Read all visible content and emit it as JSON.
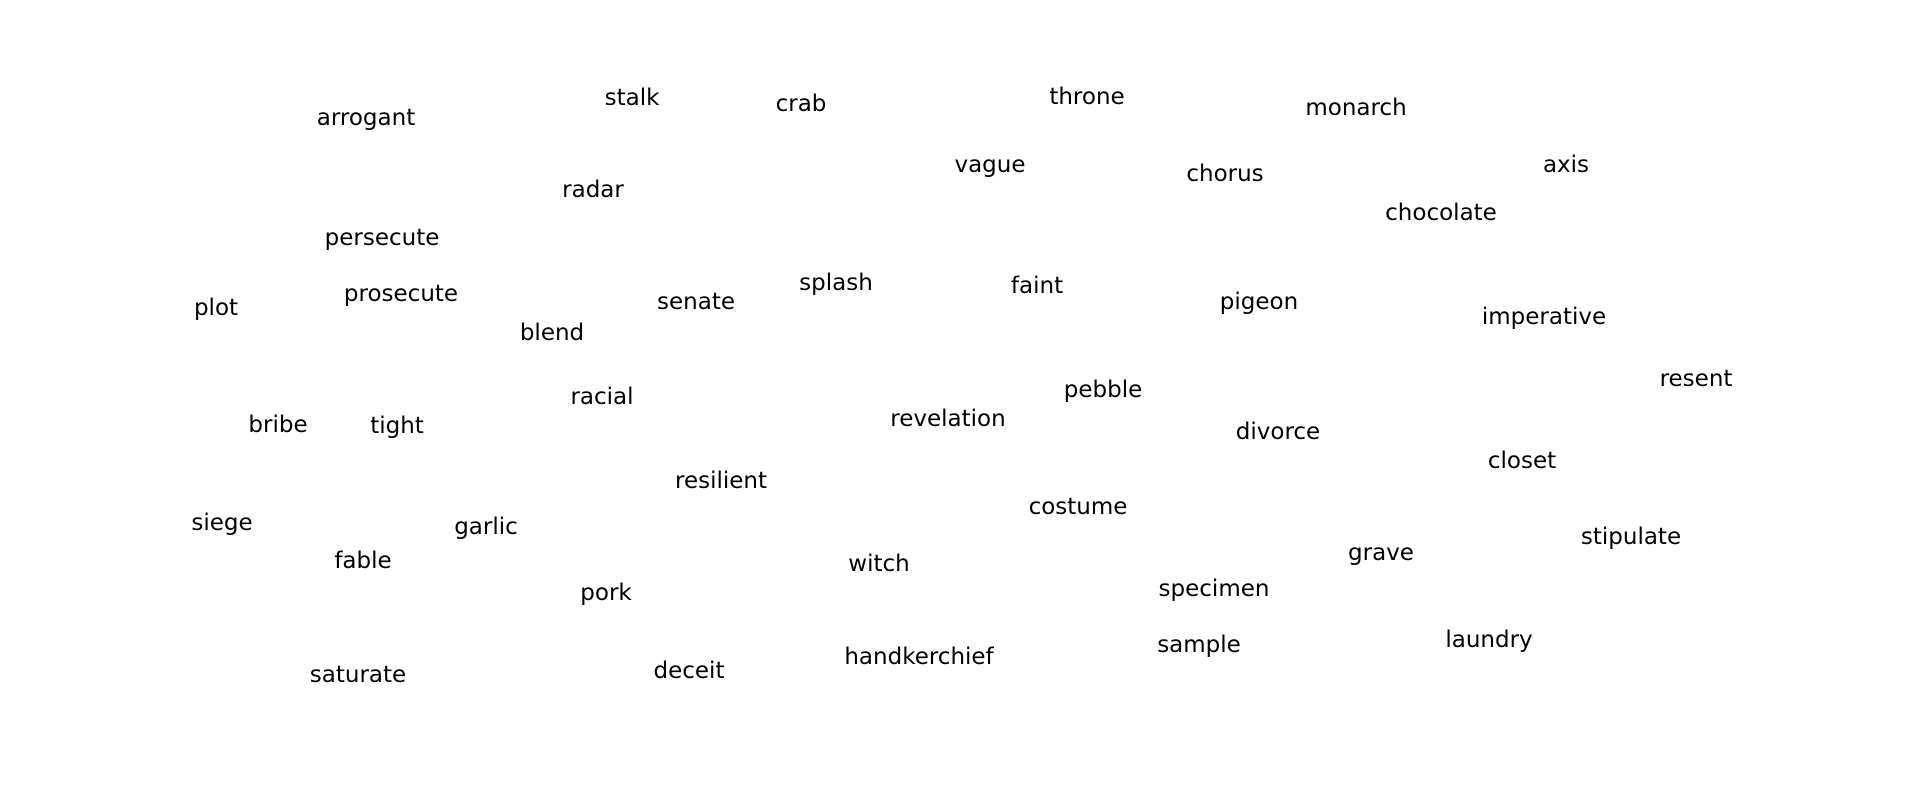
{
  "words": [
    "arrogant",
    "stalk",
    "crab",
    "throne",
    "monarch",
    "vague",
    "chorus",
    "axis",
    "radar",
    "chocolate",
    "persecute",
    "splash",
    "faint",
    "prosecute",
    "senate",
    "pigeon",
    "plot",
    "imperative",
    "blend",
    "resent",
    "pebble",
    "racial",
    "revelation",
    "bribe",
    "tight",
    "divorce",
    "closet",
    "resilient",
    "costume",
    "stipulate",
    "siege",
    "garlic",
    "grave",
    "witch",
    "fable",
    "specimen",
    "pork",
    "laundry",
    "sample",
    "handkerchief",
    "deceit",
    "saturate"
  ]
}
